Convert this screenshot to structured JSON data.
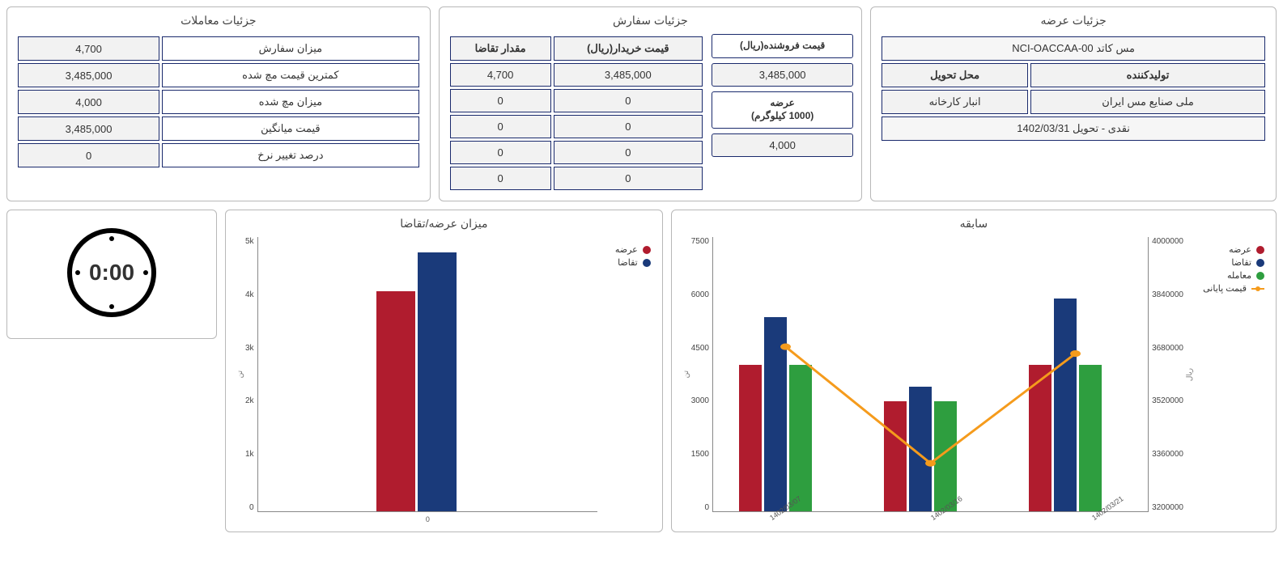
{
  "panels": {
    "supply": {
      "title": "جزئیات عرضه",
      "product": "مس کاتد NCI-OACCAA-00",
      "producer_label": "تولیدکننده",
      "delivery_place_label": "محل تحویل",
      "producer": "ملی صنایع مس ایران",
      "delivery_place": "انبار کارخانه",
      "settlement": "نقدی - تحویل 1402/03/31"
    },
    "order": {
      "title": "جزئیات سفارش",
      "seller_price_label": "قیمت فروشنده(ریال)",
      "seller_price": "3,485,000",
      "offer_label_line1": "عرضه",
      "offer_label_line2": "(1000 کیلوگرم)",
      "offer_value": "4,000",
      "table": {
        "buyer_price_header": "قیمت خریدار(ریال)",
        "demand_qty_header": "مقدار تقاضا",
        "rows": [
          {
            "price": "3,485,000",
            "qty": "4,700"
          },
          {
            "price": "0",
            "qty": "0"
          },
          {
            "price": "0",
            "qty": "0"
          },
          {
            "price": "0",
            "qty": "0"
          },
          {
            "price": "0",
            "qty": "0"
          }
        ]
      }
    },
    "trades": {
      "title": "جزئیات معاملات",
      "rows": [
        {
          "label": "میزان سفارش",
          "value": "4,700"
        },
        {
          "label": "کمترین قیمت مچ شده",
          "value": "3,485,000"
        },
        {
          "label": "میزان مچ شده",
          "value": "4,000"
        },
        {
          "label": "قیمت میانگین",
          "value": "3,485,000"
        },
        {
          "label": "درصد تغییر نرخ",
          "value": "0"
        }
      ]
    }
  },
  "clock": {
    "time": "0:00"
  },
  "charts": {
    "supply_demand": {
      "title": "میزان عرضه/تقاضا",
      "type": "bar",
      "y_label": "تن",
      "y_ticks": [
        "5k",
        "4k",
        "3k",
        "2k",
        "1k",
        "0"
      ],
      "y_max": 5000,
      "x_labels": [
        "0"
      ],
      "series": [
        {
          "name": "عرضه",
          "color": "#b01c2e",
          "value": 4000
        },
        {
          "name": "تقاضا",
          "color": "#1a3a7a",
          "value": 4700
        }
      ],
      "legend": [
        {
          "name": "عرضه",
          "color": "#b01c2e"
        },
        {
          "name": "تقاضا",
          "color": "#1a3a7a"
        }
      ]
    },
    "history": {
      "title": "سابقه",
      "type": "combo",
      "y_left_label": "تن",
      "y_right_label": "ریال",
      "y_left_ticks": [
        "7500",
        "6000",
        "4500",
        "3000",
        "1500",
        "0"
      ],
      "y_left_max": 7500,
      "y_right_ticks": [
        "4000000",
        "3840000",
        "3680000",
        "3520000",
        "3360000",
        "3200000"
      ],
      "y_right_min": 3200000,
      "y_right_max": 4000000,
      "x_labels": [
        "1402/03/07",
        "1402/03/16",
        "1402/03/21"
      ],
      "bar_series": [
        {
          "name": "عرضه",
          "color": "#b01c2e",
          "values": [
            4000,
            3000,
            4000
          ]
        },
        {
          "name": "تقاضا",
          "color": "#1a3a7a",
          "values": [
            5300,
            3400,
            5800
          ]
        },
        {
          "name": "معامله",
          "color": "#2e9e3f",
          "values": [
            4000,
            3000,
            4000
          ]
        }
      ],
      "line_series": {
        "name": "قیمت پایانی",
        "color": "#f59b1c",
        "values": [
          3680000,
          3340000,
          3660000
        ]
      },
      "legend": [
        {
          "name": "عرضه",
          "color": "#b01c2e",
          "shape": "dot"
        },
        {
          "name": "تقاضا",
          "color": "#1a3a7a",
          "shape": "dot"
        },
        {
          "name": "معامله",
          "color": "#2e9e3f",
          "shape": "dot"
        },
        {
          "name": "قیمت پایانی",
          "color": "#f59b1c",
          "shape": "line"
        }
      ]
    }
  }
}
